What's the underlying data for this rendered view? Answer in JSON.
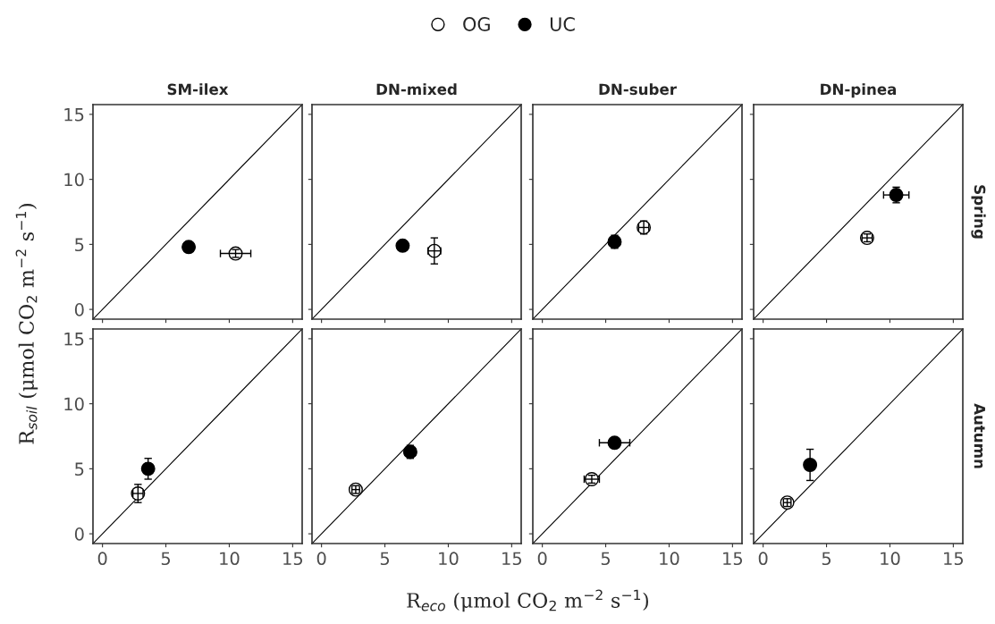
{
  "chart_data": [
    {
      "type": "scatter",
      "title": "SM-ilex",
      "ylabel": "R$_{soil}$ (μmol CO$_{2}$ m$^{−2}$ s$^{−1}$)",
      "xlim": [
        -0.75,
        15.75
      ],
      "ylim": [
        -0.75,
        15.75
      ],
      "xticks": [
        0,
        5,
        10,
        15
      ],
      "yticks": [
        0,
        5,
        10,
        15
      ],
      "tick_labels": "y",
      "grid": false,
      "legend": "top",
      "marker": "circle",
      "series": [
        {
          "type": "line",
          "marker": "none",
          "color": "#000000",
          "x": [
            -0.75,
            15.75
          ],
          "values": [
            -0.75,
            15.75
          ]
        },
        {
          "name": "OG",
          "color": "#ffffff",
          "x": [
            10.5
          ],
          "values": [
            4.3
          ],
          "errors": [
            0.3
          ],
          "xerrors": [
            1.2
          ]
        },
        {
          "name": "UC",
          "color": "#000000",
          "x": [
            6.8
          ],
          "values": [
            4.8
          ],
          "errors": [
            null
          ],
          "xerrors": [
            null
          ]
        }
      ]
    },
    {
      "type": "scatter",
      "title": "DN-mixed",
      "xlim": [
        -0.75,
        15.75
      ],
      "ylim": [
        -0.75,
        15.75
      ],
      "xticks": [
        0,
        5,
        10,
        15
      ],
      "yticks": [
        0,
        5,
        10,
        15
      ],
      "tick_labels": false,
      "grid": false,
      "marker": "circle",
      "series": [
        {
          "type": "line",
          "marker": "none",
          "color": "#000000",
          "x": [
            -0.75,
            15.75
          ],
          "values": [
            -0.75,
            15.75
          ]
        },
        {
          "color": "#ffffff",
          "x": [
            8.9
          ],
          "values": [
            4.5
          ],
          "errors": [
            1.0
          ],
          "xerrors": [
            0.5
          ]
        },
        {
          "color": "#000000",
          "x": [
            6.4
          ],
          "values": [
            4.9
          ],
          "errors": [
            null
          ],
          "xerrors": [
            null
          ]
        }
      ]
    },
    {
      "type": "scatter",
      "title": "DN-suber",
      "xlim": [
        -0.75,
        15.75
      ],
      "ylim": [
        -0.75,
        15.75
      ],
      "xticks": [
        0,
        5,
        10,
        15
      ],
      "yticks": [
        0,
        5,
        10,
        15
      ],
      "tick_labels": false,
      "grid": false,
      "marker": "circle",
      "series": [
        {
          "type": "line",
          "marker": "none",
          "color": "#000000",
          "x": [
            -0.75,
            15.75
          ],
          "values": [
            -0.75,
            15.75
          ]
        },
        {
          "color": "#ffffff",
          "x": [
            8.0
          ],
          "values": [
            6.3
          ],
          "errors": [
            0.5
          ],
          "xerrors": [
            0.4
          ]
        },
        {
          "color": "#000000",
          "x": [
            5.7
          ],
          "values": [
            5.2
          ],
          "errors": [
            0.5
          ],
          "xerrors": [
            0.4
          ]
        }
      ]
    },
    {
      "type": "scatter",
      "title": "DN-pinea",
      "annotations": [
        "Spring"
      ],
      "xlim": [
        -0.75,
        15.75
      ],
      "ylim": [
        -0.75,
        15.75
      ],
      "xticks": [
        0,
        5,
        10,
        15
      ],
      "yticks": [
        0,
        5,
        10,
        15
      ],
      "tick_labels": false,
      "grid": false,
      "marker": "circle",
      "series": [
        {
          "type": "line",
          "marker": "none",
          "color": "#000000",
          "x": [
            -0.75,
            15.75
          ],
          "values": [
            -0.75,
            15.75
          ]
        },
        {
          "color": "#ffffff",
          "x": [
            8.2
          ],
          "values": [
            5.5
          ],
          "errors": [
            0.3
          ],
          "xerrors": [
            0.4
          ]
        },
        {
          "color": "#000000",
          "x": [
            10.5
          ],
          "values": [
            8.8
          ],
          "errors": [
            0.6
          ],
          "xerrors": [
            1.0
          ]
        }
      ]
    },
    {
      "type": "scatter",
      "xlabel": "R$_{eco}$ (μmol CO$_{2}$ m$^{−2}$ s$^{−1}$)",
      "xlim": [
        -0.75,
        15.75
      ],
      "ylim": [
        -0.75,
        15.75
      ],
      "xticks": [
        0,
        5,
        10,
        15
      ],
      "yticks": [
        0,
        5,
        10,
        15
      ],
      "grid": false,
      "marker": "circle",
      "series": [
        {
          "type": "line",
          "marker": "none",
          "color": "#000000",
          "x": [
            -0.75,
            15.75
          ],
          "values": [
            -0.75,
            15.75
          ]
        },
        {
          "color": "#ffffff",
          "x": [
            2.8
          ],
          "values": [
            3.1
          ],
          "errors": [
            0.7
          ],
          "xerrors": [
            0.4
          ]
        },
        {
          "color": "#000000",
          "x": [
            3.6
          ],
          "values": [
            5.0
          ],
          "errors": [
            0.8
          ],
          "xerrors": [
            null
          ]
        }
      ]
    },
    {
      "type": "scatter",
      "xlim": [
        -0.75,
        15.75
      ],
      "ylim": [
        -0.75,
        15.75
      ],
      "xticks": [
        0,
        5,
        10,
        15
      ],
      "yticks": [
        0,
        5,
        10,
        15
      ],
      "tick_labels": "x",
      "grid": false,
      "marker": "circle",
      "series": [
        {
          "type": "line",
          "marker": "none",
          "color": "#000000",
          "x": [
            -0.75,
            15.75
          ],
          "values": [
            -0.75,
            15.75
          ]
        },
        {
          "color": "#ffffff",
          "x": [
            2.7
          ],
          "values": [
            3.4
          ],
          "errors": [
            0.3
          ],
          "xerrors": [
            0.3
          ]
        },
        {
          "color": "#000000",
          "x": [
            7.0
          ],
          "values": [
            6.3
          ],
          "errors": [
            0.5
          ],
          "xerrors": [
            0.4
          ]
        }
      ]
    },
    {
      "type": "scatter",
      "xlim": [
        -0.75,
        15.75
      ],
      "ylim": [
        -0.75,
        15.75
      ],
      "xticks": [
        0,
        5,
        10,
        15
      ],
      "yticks": [
        0,
        5,
        10,
        15
      ],
      "tick_labels": "x",
      "grid": false,
      "marker": "circle",
      "series": [
        {
          "type": "line",
          "marker": "none",
          "color": "#000000",
          "x": [
            -0.75,
            15.75
          ],
          "values": [
            -0.75,
            15.75
          ]
        },
        {
          "color": "#ffffff",
          "x": [
            3.9
          ],
          "values": [
            4.2
          ],
          "errors": [
            0.3
          ],
          "xerrors": [
            0.6
          ]
        },
        {
          "color": "#000000",
          "x": [
            5.7
          ],
          "values": [
            7.0
          ],
          "errors": [
            null
          ],
          "xerrors": [
            1.2
          ]
        }
      ]
    },
    {
      "type": "scatter",
      "annotations": [
        "Autumn"
      ],
      "xlim": [
        -0.75,
        15.75
      ],
      "ylim": [
        -0.75,
        15.75
      ],
      "xticks": [
        0,
        5,
        10,
        15
      ],
      "yticks": [
        0,
        5,
        10,
        15
      ],
      "tick_labels": "x",
      "grid": false,
      "marker": "circle",
      "series": [
        {
          "type": "line",
          "marker": "none",
          "color": "#000000",
          "x": [
            -0.75,
            15.75
          ],
          "values": [
            -0.75,
            15.75
          ]
        },
        {
          "color": "#ffffff",
          "x": [
            1.9
          ],
          "values": [
            2.4
          ],
          "errors": [
            0.3
          ],
          "xerrors": [
            0.3
          ]
        },
        {
          "color": "#000000",
          "x": [
            3.7
          ],
          "values": [
            5.3
          ],
          "errors": [
            1.2
          ],
          "xerrors": [
            null
          ]
        }
      ]
    }
  ]
}
